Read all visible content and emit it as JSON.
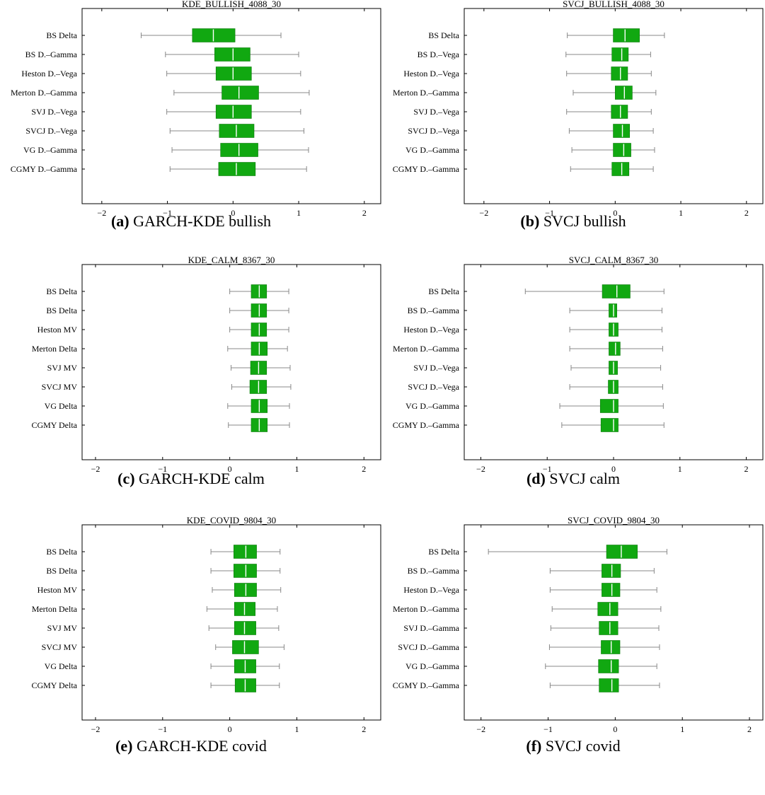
{
  "figure": {
    "panels": [
      {
        "label": "(a)",
        "caption": "GARCH-KDE bullish"
      },
      {
        "label": "(b)",
        "caption": "SVCJ bullish"
      },
      {
        "label": "(c)",
        "caption": "GARCH-KDE calm"
      },
      {
        "label": "(d)",
        "caption": "SVCJ calm"
      },
      {
        "label": "(e)",
        "caption": "GARCH-KDE covid"
      },
      {
        "label": "(f)",
        "caption": "SVCJ covid"
      }
    ]
  },
  "colors": {
    "box_fill": "#11a811",
    "box_stroke": "#0c7a0c",
    "median": "#ffffff",
    "whisker": "#888888",
    "frame": "#000000"
  },
  "chart_data": [
    {
      "type": "boxplot",
      "orientation": "horizontal",
      "title": "KDE_BULLISH_4088_30",
      "xlim": [
        -2.3,
        2.25
      ],
      "xticks": [
        -2,
        -1,
        0,
        1,
        2
      ],
      "grid": false,
      "categories": [
        "BS Delta",
        "BS D.–Gamma",
        "Heston D.–Vega",
        "Merton D.–Gamma",
        "SVJ D.–Vega",
        "SVCJ D.–Vega",
        "VG D.–Gamma",
        "CGMY D.–Gamma"
      ],
      "boxes": [
        {
          "min": -1.4,
          "q1": -0.62,
          "median": -0.3,
          "q3": 0.03,
          "max": 0.73
        },
        {
          "min": -1.03,
          "q1": -0.28,
          "median": 0.0,
          "q3": 0.26,
          "max": 1.0
        },
        {
          "min": -1.01,
          "q1": -0.26,
          "median": 0.0,
          "q3": 0.28,
          "max": 1.03
        },
        {
          "min": -0.9,
          "q1": -0.17,
          "median": 0.09,
          "q3": 0.39,
          "max": 1.16
        },
        {
          "min": -1.01,
          "q1": -0.26,
          "median": 0.0,
          "q3": 0.28,
          "max": 1.03
        },
        {
          "min": -0.96,
          "q1": -0.21,
          "median": 0.05,
          "q3": 0.32,
          "max": 1.08
        },
        {
          "min": -0.93,
          "q1": -0.19,
          "median": 0.09,
          "q3": 0.38,
          "max": 1.15
        },
        {
          "min": -0.96,
          "q1": -0.22,
          "median": 0.05,
          "q3": 0.34,
          "max": 1.12
        }
      ]
    },
    {
      "type": "boxplot",
      "orientation": "horizontal",
      "title": "SVCJ_BULLISH_4088_30",
      "xlim": [
        -2.3,
        2.25
      ],
      "xticks": [
        -2,
        -1,
        0,
        1,
        2
      ],
      "grid": false,
      "categories": [
        "BS Delta",
        "BS D.–Vega",
        "Heston D.–Vega",
        "Merton D.–Gamma",
        "SVJ D.–Vega",
        "SVCJ D.–Vega",
        "VG D.–Gamma",
        "CGMY D.–Gamma"
      ],
      "boxes": [
        {
          "min": -0.73,
          "q1": -0.03,
          "median": 0.15,
          "q3": 0.37,
          "max": 0.75
        },
        {
          "min": -0.75,
          "q1": -0.05,
          "median": 0.1,
          "q3": 0.2,
          "max": 0.54
        },
        {
          "min": -0.74,
          "q1": -0.06,
          "median": 0.08,
          "q3": 0.19,
          "max": 0.55
        },
        {
          "min": -0.64,
          "q1": 0.0,
          "median": 0.14,
          "q3": 0.26,
          "max": 0.62
        },
        {
          "min": -0.74,
          "q1": -0.06,
          "median": 0.08,
          "q3": 0.19,
          "max": 0.55
        },
        {
          "min": -0.7,
          "q1": -0.03,
          "median": 0.11,
          "q3": 0.22,
          "max": 0.58
        },
        {
          "min": -0.66,
          "q1": -0.03,
          "median": 0.13,
          "q3": 0.24,
          "max": 0.6
        },
        {
          "min": -0.68,
          "q1": -0.05,
          "median": 0.1,
          "q3": 0.21,
          "max": 0.58
        }
      ]
    },
    {
      "type": "boxplot",
      "orientation": "horizontal",
      "title": "KDE_CALM_8367_30",
      "xlim": [
        -2.2,
        2.25
      ],
      "xticks": [
        -2,
        -1,
        0,
        1,
        2
      ],
      "grid": false,
      "categories": [
        "BS Delta",
        "BS Delta",
        "Heston MV",
        "Merton Delta",
        "SVJ MV",
        "SVCJ MV",
        "VG Delta",
        "CGMY Delta"
      ],
      "boxes": [
        {
          "min": 0.0,
          "q1": 0.32,
          "median": 0.44,
          "q3": 0.55,
          "max": 0.88
        },
        {
          "min": 0.0,
          "q1": 0.32,
          "median": 0.44,
          "q3": 0.55,
          "max": 0.88
        },
        {
          "min": 0.0,
          "q1": 0.32,
          "median": 0.44,
          "q3": 0.55,
          "max": 0.88
        },
        {
          "min": -0.03,
          "q1": 0.32,
          "median": 0.44,
          "q3": 0.56,
          "max": 0.86
        },
        {
          "min": 0.02,
          "q1": 0.31,
          "median": 0.43,
          "q3": 0.55,
          "max": 0.9
        },
        {
          "min": 0.03,
          "q1": 0.3,
          "median": 0.43,
          "q3": 0.55,
          "max": 0.91
        },
        {
          "min": -0.03,
          "q1": 0.32,
          "median": 0.44,
          "q3": 0.56,
          "max": 0.89
        },
        {
          "min": -0.02,
          "q1": 0.32,
          "median": 0.44,
          "q3": 0.56,
          "max": 0.89
        }
      ]
    },
    {
      "type": "boxplot",
      "orientation": "horizontal",
      "title": "SVCJ_CALM_8367_30",
      "xlim": [
        -2.25,
        2.25
      ],
      "xticks": [
        -2,
        -1,
        0,
        1,
        2
      ],
      "grid": false,
      "categories": [
        "BS Delta",
        "BS D.–Gamma",
        "Heston D.–Vega",
        "Merton D.–Gamma",
        "SVJ D.–Vega",
        "SVCJ D.–Vega",
        "VG D.–Gamma",
        "CGMY D.–Gamma"
      ],
      "boxes": [
        {
          "min": -1.33,
          "q1": -0.17,
          "median": 0.05,
          "q3": 0.25,
          "max": 0.76
        },
        {
          "min": -0.66,
          "q1": -0.07,
          "median": 0.0,
          "q3": 0.05,
          "max": 0.73
        },
        {
          "min": -0.66,
          "q1": -0.07,
          "median": 0.0,
          "q3": 0.07,
          "max": 0.73
        },
        {
          "min": -0.66,
          "q1": -0.07,
          "median": 0.03,
          "q3": 0.1,
          "max": 0.74
        },
        {
          "min": -0.64,
          "q1": -0.07,
          "median": 0.0,
          "q3": 0.06,
          "max": 0.71
        },
        {
          "min": -0.66,
          "q1": -0.08,
          "median": 0.0,
          "q3": 0.07,
          "max": 0.74
        },
        {
          "min": -0.81,
          "q1": -0.2,
          "median": 0.0,
          "q3": 0.07,
          "max": 0.75
        },
        {
          "min": -0.78,
          "q1": -0.19,
          "median": 0.0,
          "q3": 0.07,
          "max": 0.76
        }
      ]
    },
    {
      "type": "boxplot",
      "orientation": "horizontal",
      "title": "KDE_COVID_9804_30",
      "xlim": [
        -2.2,
        2.25
      ],
      "xticks": [
        -2,
        -1,
        0,
        1,
        2
      ],
      "grid": false,
      "categories": [
        "BS Delta",
        "BS Delta",
        "Heston MV",
        "Merton Delta",
        "SVJ MV",
        "SVCJ MV",
        "VG Delta",
        "CGMY Delta"
      ],
      "boxes": [
        {
          "min": -0.28,
          "q1": 0.06,
          "median": 0.24,
          "q3": 0.4,
          "max": 0.75
        },
        {
          "min": -0.28,
          "q1": 0.06,
          "median": 0.24,
          "q3": 0.4,
          "max": 0.75
        },
        {
          "min": -0.26,
          "q1": 0.07,
          "median": 0.24,
          "q3": 0.4,
          "max": 0.76
        },
        {
          "min": -0.34,
          "q1": 0.07,
          "median": 0.22,
          "q3": 0.38,
          "max": 0.71
        },
        {
          "min": -0.31,
          "q1": 0.07,
          "median": 0.22,
          "q3": 0.39,
          "max": 0.73
        },
        {
          "min": -0.21,
          "q1": 0.04,
          "median": 0.22,
          "q3": 0.43,
          "max": 0.81
        },
        {
          "min": -0.28,
          "q1": 0.07,
          "median": 0.23,
          "q3": 0.39,
          "max": 0.74
        },
        {
          "min": -0.28,
          "q1": 0.08,
          "median": 0.23,
          "q3": 0.39,
          "max": 0.74
        }
      ]
    },
    {
      "type": "boxplot",
      "orientation": "horizontal",
      "title": "SVCJ_COVID_9804_30",
      "xlim": [
        -2.25,
        2.2
      ],
      "xticks": [
        -2,
        -1,
        0,
        1,
        2
      ],
      "grid": false,
      "categories": [
        "BS Delta",
        "BS D.–Gamma",
        "Heston D.–Vega",
        "Merton D.–Gamma",
        "SVJ D.–Gamma",
        "SVCJ D.–Gamma",
        "VG D.–Gamma",
        "CGMY D.–Gamma"
      ],
      "boxes": [
        {
          "min": -1.89,
          "q1": -0.13,
          "median": 0.09,
          "q3": 0.33,
          "max": 0.77
        },
        {
          "min": -0.97,
          "q1": -0.2,
          "median": -0.05,
          "q3": 0.08,
          "max": 0.58
        },
        {
          "min": -0.97,
          "q1": -0.2,
          "median": -0.05,
          "q3": 0.07,
          "max": 0.62
        },
        {
          "min": -0.94,
          "q1": -0.26,
          "median": -0.08,
          "q3": 0.04,
          "max": 0.68
        },
        {
          "min": -0.96,
          "q1": -0.24,
          "median": -0.08,
          "q3": 0.04,
          "max": 0.65
        },
        {
          "min": -0.98,
          "q1": -0.21,
          "median": -0.06,
          "q3": 0.07,
          "max": 0.66
        },
        {
          "min": -1.04,
          "q1": -0.25,
          "median": -0.06,
          "q3": 0.05,
          "max": 0.62
        },
        {
          "min": -0.97,
          "q1": -0.24,
          "median": -0.05,
          "q3": 0.05,
          "max": 0.66
        }
      ]
    }
  ]
}
